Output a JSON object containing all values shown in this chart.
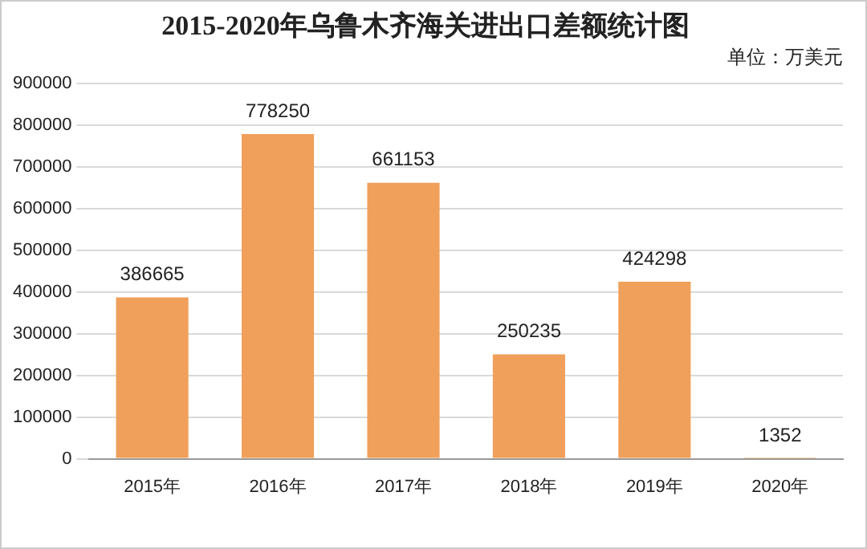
{
  "chart_data": {
    "type": "bar",
    "title": "2015-2020年乌鲁木齐海关进出口差额统计图",
    "annotations": [
      "单位：万美元"
    ],
    "categories": [
      "2015年",
      "2016年",
      "2017年",
      "2018年",
      "2019年",
      "2020年"
    ],
    "values": [
      386665,
      778250,
      661153,
      250235,
      424298,
      1352
    ],
    "color": "#f0a05a",
    "ylim": [
      0,
      900000
    ],
    "yticks": [
      0,
      100000,
      200000,
      300000,
      400000,
      500000,
      600000,
      700000,
      800000,
      900000
    ],
    "grid": "y",
    "data_labels": true
  }
}
